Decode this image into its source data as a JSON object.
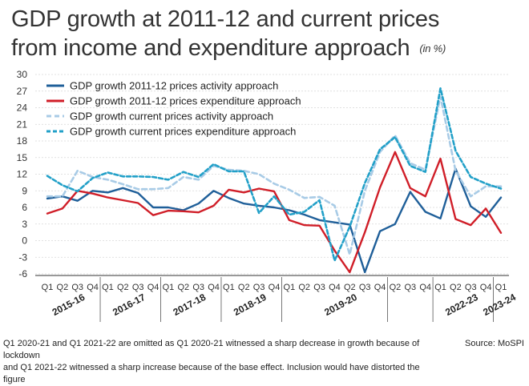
{
  "title_line1": "GDP growth at 2011-12 and current prices",
  "title_line2": "from income and expenditure approach",
  "unit": "(in %)",
  "footnote_line1": "Q1 2020-21 and Q1 2021-22 are omitted as Q1 2020-21 witnessed a sharp decrease in growth because of lockdown",
  "footnote_line2": "and Q1 2021-22 witnessed a sharp increase because of the base effect. Inclusion would have distorted the figure",
  "source": "Source: MoSPI",
  "chart_data": {
    "type": "line",
    "ylim": [
      -6,
      30
    ],
    "yticks": [
      -6,
      -3,
      0,
      3,
      6,
      9,
      12,
      15,
      18,
      21,
      24,
      27,
      30
    ],
    "grid": true,
    "legend_position": "top-left",
    "x": [
      "Q1",
      "Q2",
      "Q3",
      "Q4",
      "Q1",
      "Q2",
      "Q3",
      "Q4",
      "Q1",
      "Q2",
      "Q3",
      "Q4",
      "Q1",
      "Q2",
      "Q3",
      "Q4",
      "Q1",
      "Q2",
      "Q3",
      "Q4",
      "Q2",
      "Q3",
      "Q4",
      "Q2",
      "Q3",
      "Q4",
      "Q1",
      "Q2",
      "Q3",
      "Q4",
      "Q1"
    ],
    "year_labels": [
      {
        "label": "2015-16",
        "center": 1.5
      },
      {
        "label": "2016-17",
        "center": 5.5
      },
      {
        "label": "2017-18",
        "center": 9.5
      },
      {
        "label": "2018-19",
        "center": 13.5
      },
      {
        "label": "2019-20",
        "center": 19.5
      },
      {
        "label": "2022-23",
        "center": 27.5
      },
      {
        "label": "2023-24",
        "center": 30
      }
    ],
    "year_dividers": [
      3.5,
      7.5,
      11.5,
      15.5,
      22.5,
      25.5,
      29.5
    ],
    "series": [
      {
        "name": "GDP growth 2011-12 prices activity approach",
        "color": "#1f5f99",
        "dash": "solid",
        "values": [
          7.6,
          8.0,
          7.2,
          9.0,
          8.7,
          9.5,
          8.6,
          6.0,
          6.0,
          5.5,
          6.7,
          9.0,
          7.7,
          6.7,
          6.3,
          6.0,
          5.5,
          4.7,
          3.7,
          3.3,
          2.9,
          -5.7,
          1.7,
          3.0,
          8.8,
          5.2,
          4.0,
          13.0,
          6.2,
          4.3,
          7.8
        ]
      },
      {
        "name": "GDP growth 2011-12 prices expenditure approach",
        "color": "#d01e28",
        "dash": "solid",
        "values": [
          4.9,
          5.8,
          9.0,
          8.5,
          7.8,
          7.3,
          6.8,
          4.6,
          5.4,
          5.3,
          5.1,
          6.3,
          9.2,
          8.7,
          9.4,
          8.9,
          3.7,
          2.8,
          2.7,
          -1.8,
          -5.7,
          1.5,
          9.6,
          16.0,
          9.5,
          8.0,
          14.8,
          3.9,
          2.8,
          5.8,
          1.4
        ]
      },
      {
        "name": "GDP growth current prices activity approach",
        "color": "#a8cbe6",
        "dash": "6,4",
        "values": [
          8.0,
          8.0,
          12.6,
          11.5,
          11.0,
          10.2,
          9.3,
          9.3,
          9.5,
          11.5,
          11.0,
          13.5,
          12.8,
          12.6,
          12.0,
          10.3,
          9.2,
          7.7,
          7.9,
          6.3,
          -2.5,
          9.0,
          16.0,
          19.0,
          14.0,
          12.8,
          26.0,
          12.6,
          8.0,
          9.8,
          9.8
        ]
      },
      {
        "name": "GDP growth current prices expenditure approach",
        "color": "#22a0c8",
        "dash": "5,3",
        "values": [
          11.7,
          10.0,
          8.9,
          11.3,
          12.3,
          11.6,
          11.6,
          11.5,
          11.0,
          12.4,
          11.5,
          13.8,
          12.5,
          12.5,
          5.0,
          8.0,
          4.7,
          5.2,
          7.3,
          -3.6,
          2.5,
          10.4,
          16.5,
          18.7,
          13.5,
          12.4,
          27.5,
          16.2,
          11.5,
          10.3,
          9.4
        ]
      }
    ]
  }
}
